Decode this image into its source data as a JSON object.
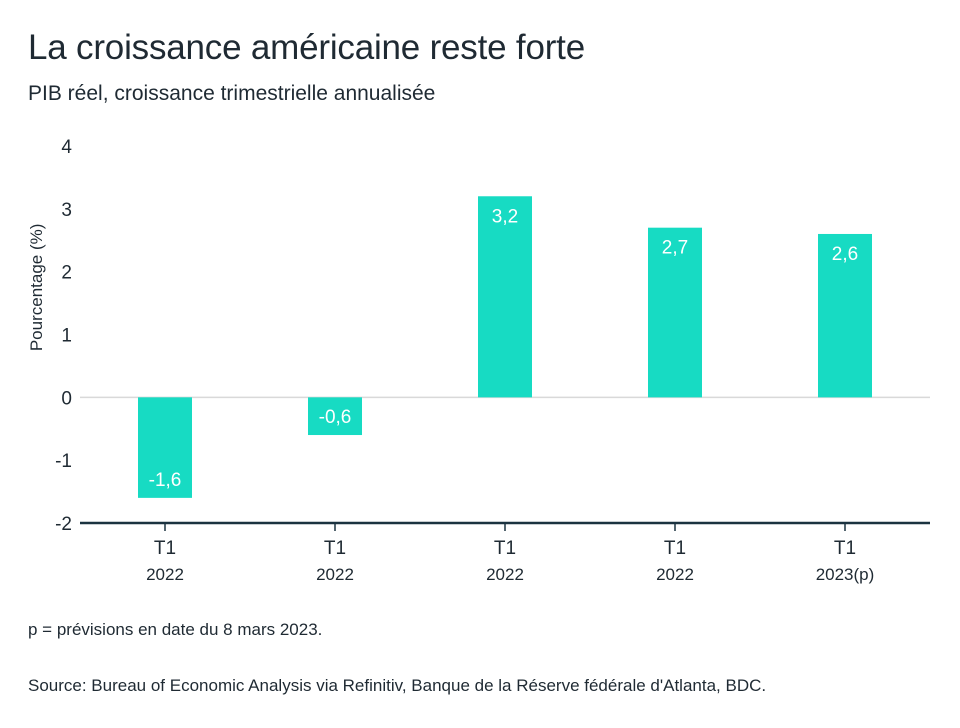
{
  "header": {
    "title": "La croissance américaine reste forte",
    "subtitle": "PIB réel, croissance trimestrielle annualisée"
  },
  "footer": {
    "note": "p = prévisions en date du 8 mars 2023.",
    "source": "Source: Bureau of Economic Analysis via Refinitiv, Banque de la Réserve fédérale d'Atlanta, BDC."
  },
  "colors": {
    "bar": "#17dbc3",
    "axis": "#1b3340",
    "grid": "#d9d9d9",
    "text": "#1f2a33"
  },
  "chart_data": {
    "type": "bar",
    "title": "La croissance américaine reste forte",
    "subtitle": "PIB réel, croissance trimestrielle annualisée",
    "ylabel": "Pourcentage (%)",
    "xlabel": "",
    "ylim": [
      -2,
      4
    ],
    "yticks": [
      4,
      3,
      2,
      1,
      0,
      -1,
      -2
    ],
    "grid": false,
    "categories": [
      {
        "quarter": "T1",
        "year": "2022"
      },
      {
        "quarter": "T1",
        "year": "2022"
      },
      {
        "quarter": "T1",
        "year": "2022"
      },
      {
        "quarter": "T1",
        "year": "2022"
      },
      {
        "quarter": "T1",
        "year": "2023(p)"
      }
    ],
    "values": [
      -1.6,
      -0.6,
      3.2,
      2.7,
      2.6
    ],
    "data_labels": [
      "-1,6",
      "-0,6",
      "3,2",
      "2,7",
      "2,6"
    ]
  }
}
